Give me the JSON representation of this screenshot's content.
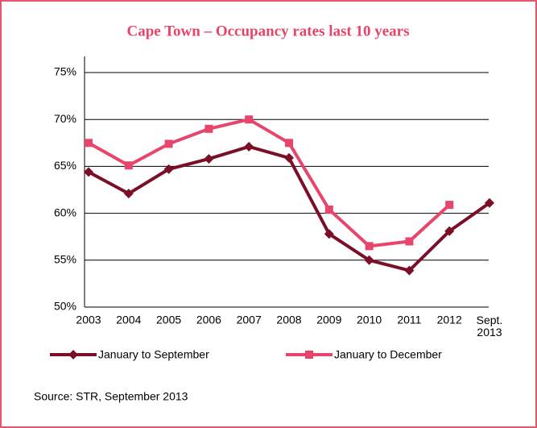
{
  "chart_data": {
    "type": "line",
    "title": "Cape Town – Occupancy rates last 10 years",
    "categories": [
      "2003",
      "2004",
      "2005",
      "2006",
      "2007",
      "2008",
      "2009",
      "2010",
      "2011",
      "2012",
      "Sept. 2013"
    ],
    "series": [
      {
        "name": "January to September",
        "color": "#7a0f27",
        "marker": "diamond",
        "values": [
          64.4,
          62.1,
          64.7,
          65.8,
          67.1,
          65.9,
          57.8,
          55.0,
          53.9,
          58.1,
          61.1
        ]
      },
      {
        "name": "January to December",
        "color": "#e8456c",
        "marker": "square",
        "values": [
          67.5,
          65.1,
          67.4,
          69.0,
          70.0,
          67.5,
          60.4,
          56.5,
          57.0,
          60.9,
          null
        ]
      }
    ],
    "ylim": [
      50,
      75
    ],
    "yticks": [
      {
        "value": 50,
        "label": "50%"
      },
      {
        "value": 55,
        "label": "55%"
      },
      {
        "value": 60,
        "label": "60%"
      },
      {
        "value": 65,
        "label": "65%"
      },
      {
        "value": 70,
        "label": "70%"
      },
      {
        "value": 75,
        "label": "75%"
      }
    ],
    "grid": true,
    "legend": "bottom",
    "source": "Source: STR, September 2013"
  }
}
